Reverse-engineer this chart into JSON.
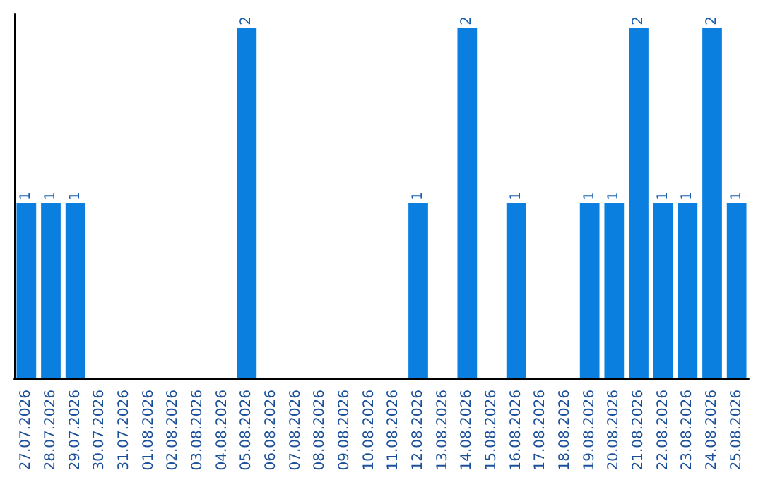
{
  "chart_data": {
    "type": "bar",
    "categories": [
      "27.07.2026",
      "28.07.2026",
      "29.07.2026",
      "30.07.2026",
      "31.07.2026",
      "01.08.2026",
      "02.08.2026",
      "03.08.2026",
      "04.08.2026",
      "05.08.2026",
      "06.08.2026",
      "07.08.2026",
      "08.08.2026",
      "09.08.2026",
      "10.08.2026",
      "11.08.2026",
      "12.08.2026",
      "13.08.2026",
      "14.08.2026",
      "15.08.2026",
      "16.08.2026",
      "17.08.2026",
      "18.08.2026",
      "19.08.2026",
      "20.08.2026",
      "21.08.2026",
      "22.08.2026",
      "23.08.2026",
      "24.08.2026",
      "25.08.2026"
    ],
    "values": [
      1,
      1,
      1,
      0,
      0,
      0,
      0,
      0,
      0,
      2,
      0,
      0,
      0,
      0,
      0,
      0,
      1,
      0,
      2,
      0,
      1,
      0,
      0,
      1,
      1,
      2,
      1,
      1,
      2,
      1
    ],
    "value_labels": [
      "1",
      "1",
      "1",
      null,
      null,
      null,
      null,
      null,
      null,
      "2",
      null,
      null,
      null,
      null,
      null,
      null,
      "1",
      null,
      "2",
      null,
      "1",
      null,
      null,
      "1",
      "1",
      "2",
      "1",
      "1",
      "2",
      "1"
    ],
    "color": "#0a7fe0",
    "tick_labels": "x",
    "grid": false
  }
}
